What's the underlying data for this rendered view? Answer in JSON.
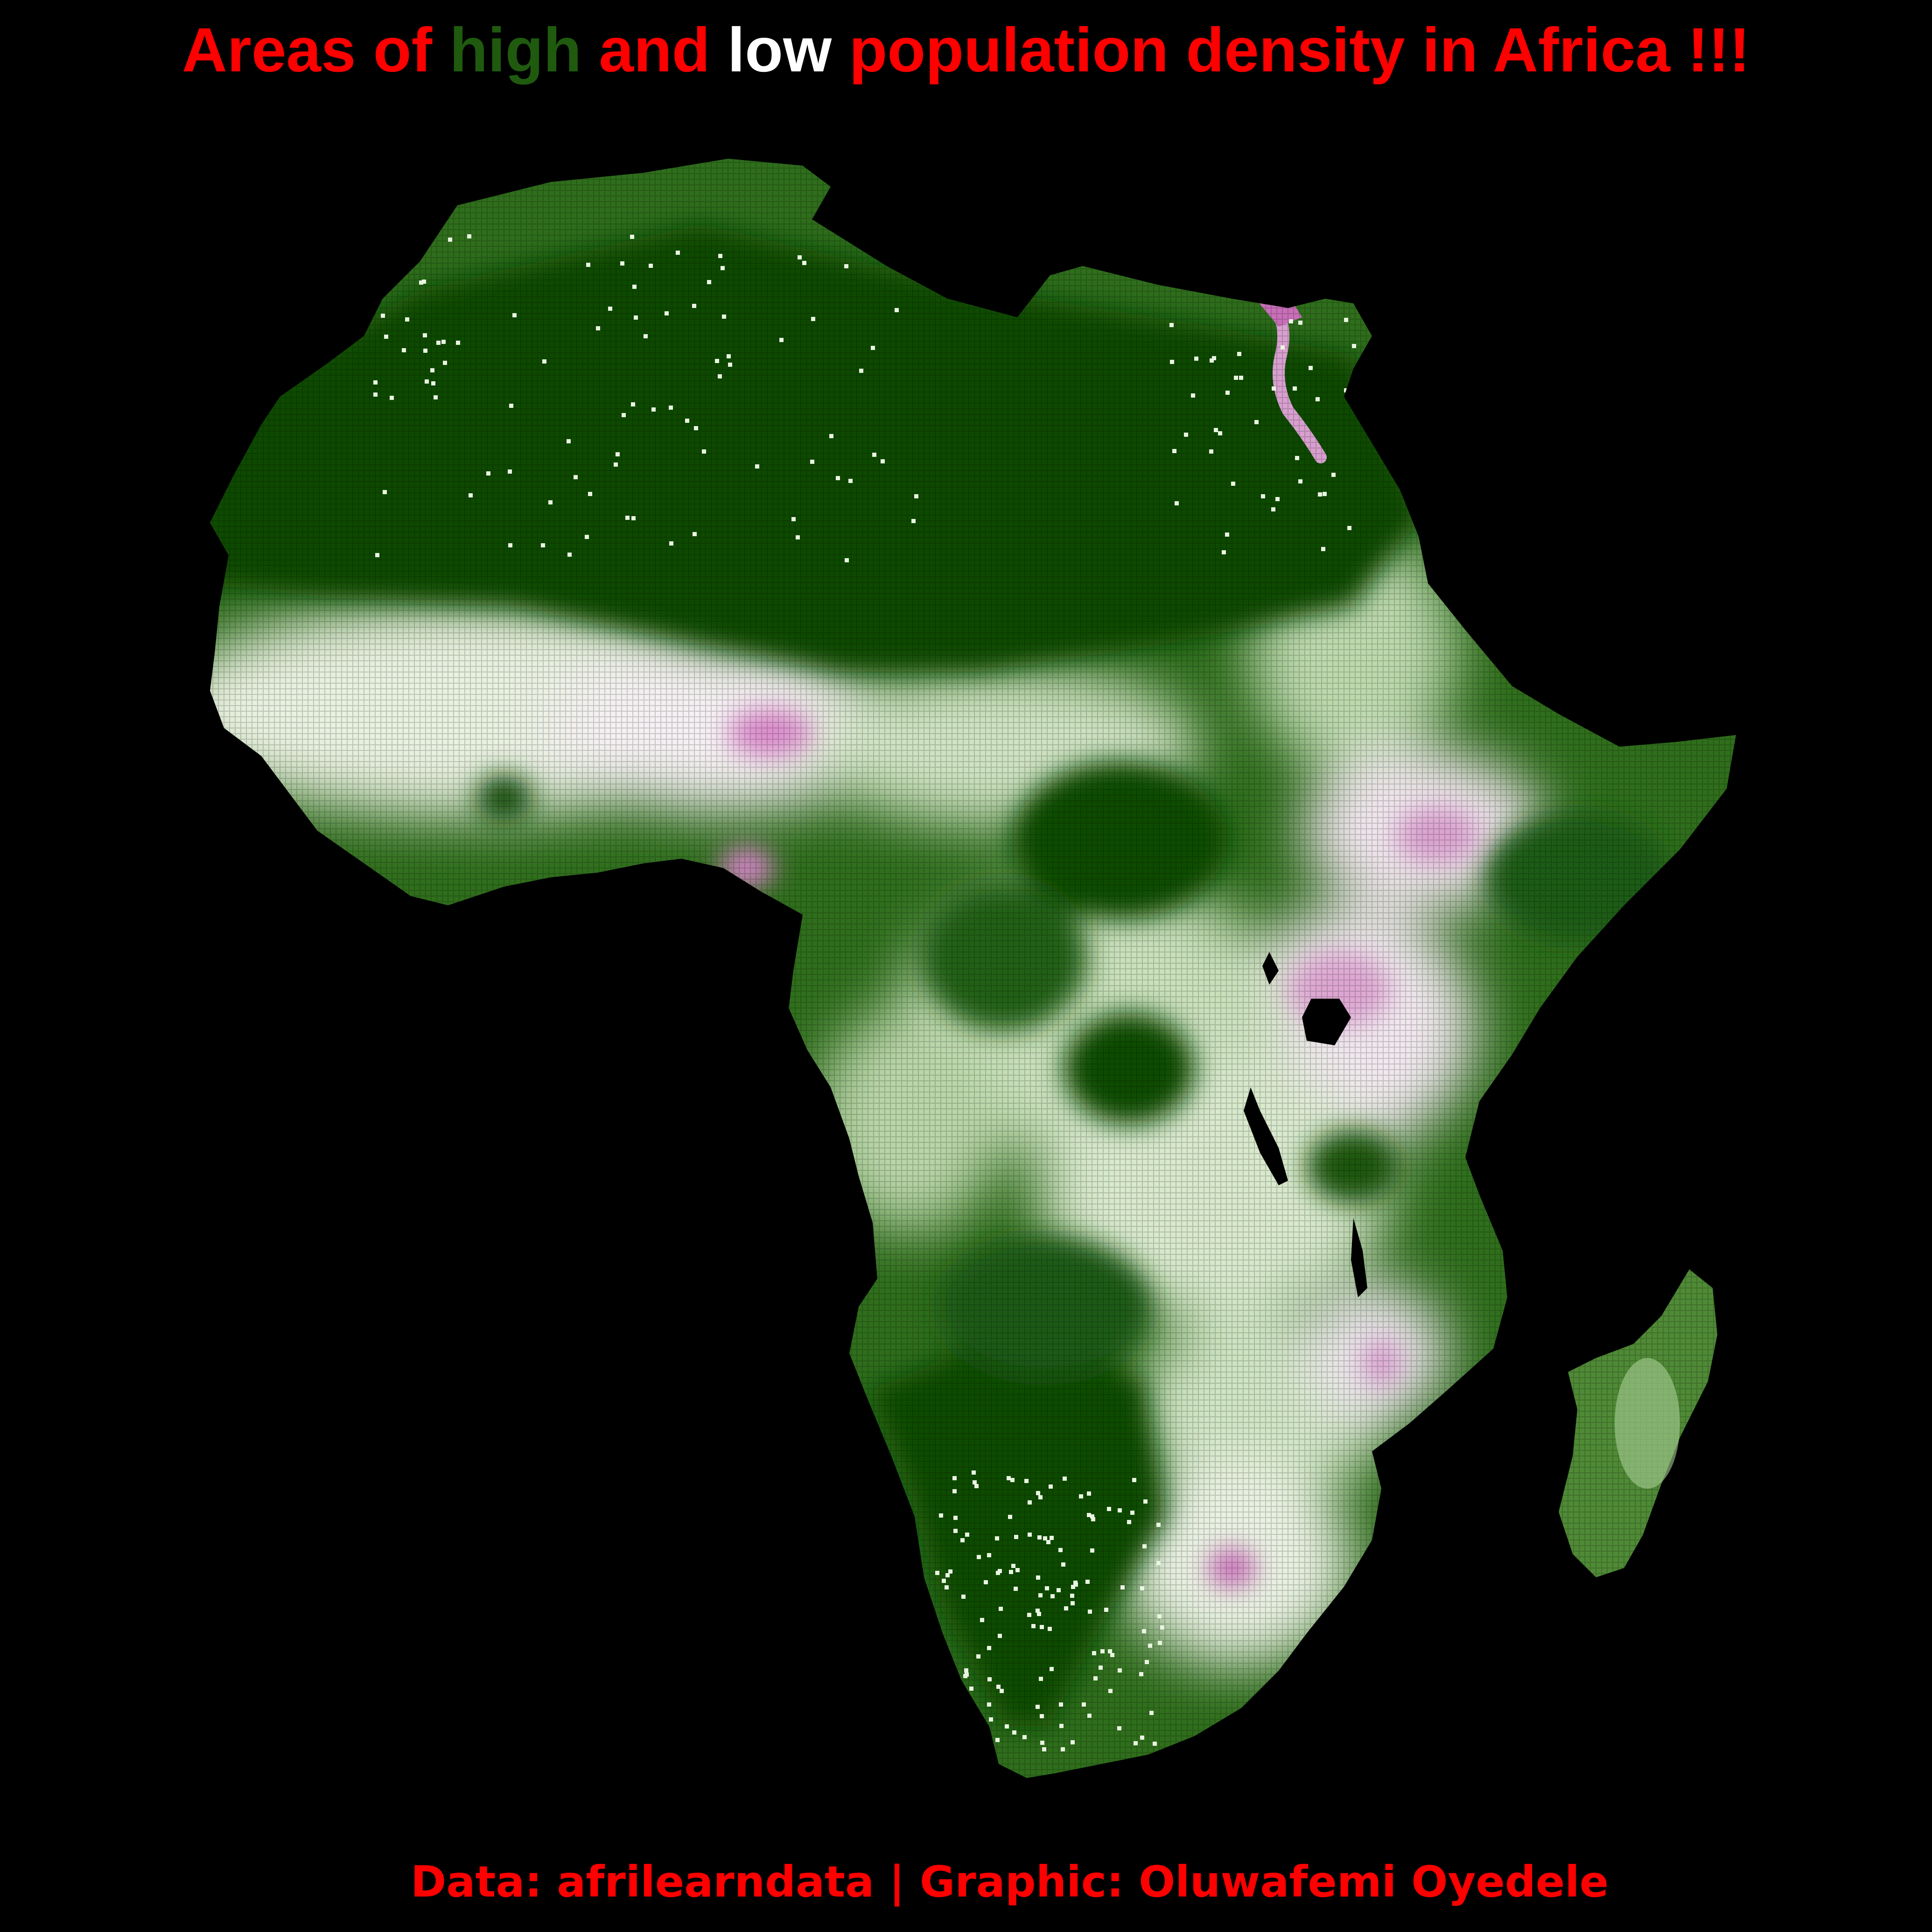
{
  "title": {
    "segments": [
      {
        "text": "Areas of ",
        "color": "#ff0000"
      },
      {
        "text": "high",
        "color": "#1f5a0f"
      },
      {
        "text": " and ",
        "color": "#ff0000"
      },
      {
        "text": "low",
        "color": "#ffffff"
      },
      {
        "text": " population density in Africa !!!",
        "color": "#ff0000"
      }
    ]
  },
  "caption": {
    "text": "Data: afrilearndata | Graphic: Oluwafemi Oyedele",
    "color": "#ff0000"
  },
  "map": {
    "region": "Africa",
    "palette": {
      "background": "#000000",
      "dense_green": "#0f4a05",
      "mid_green": "#3f7f2a",
      "light_green": "#9cc98a",
      "pale": "#f2f2ee",
      "magenta": "#d070c0",
      "water": "#000000"
    }
  }
}
